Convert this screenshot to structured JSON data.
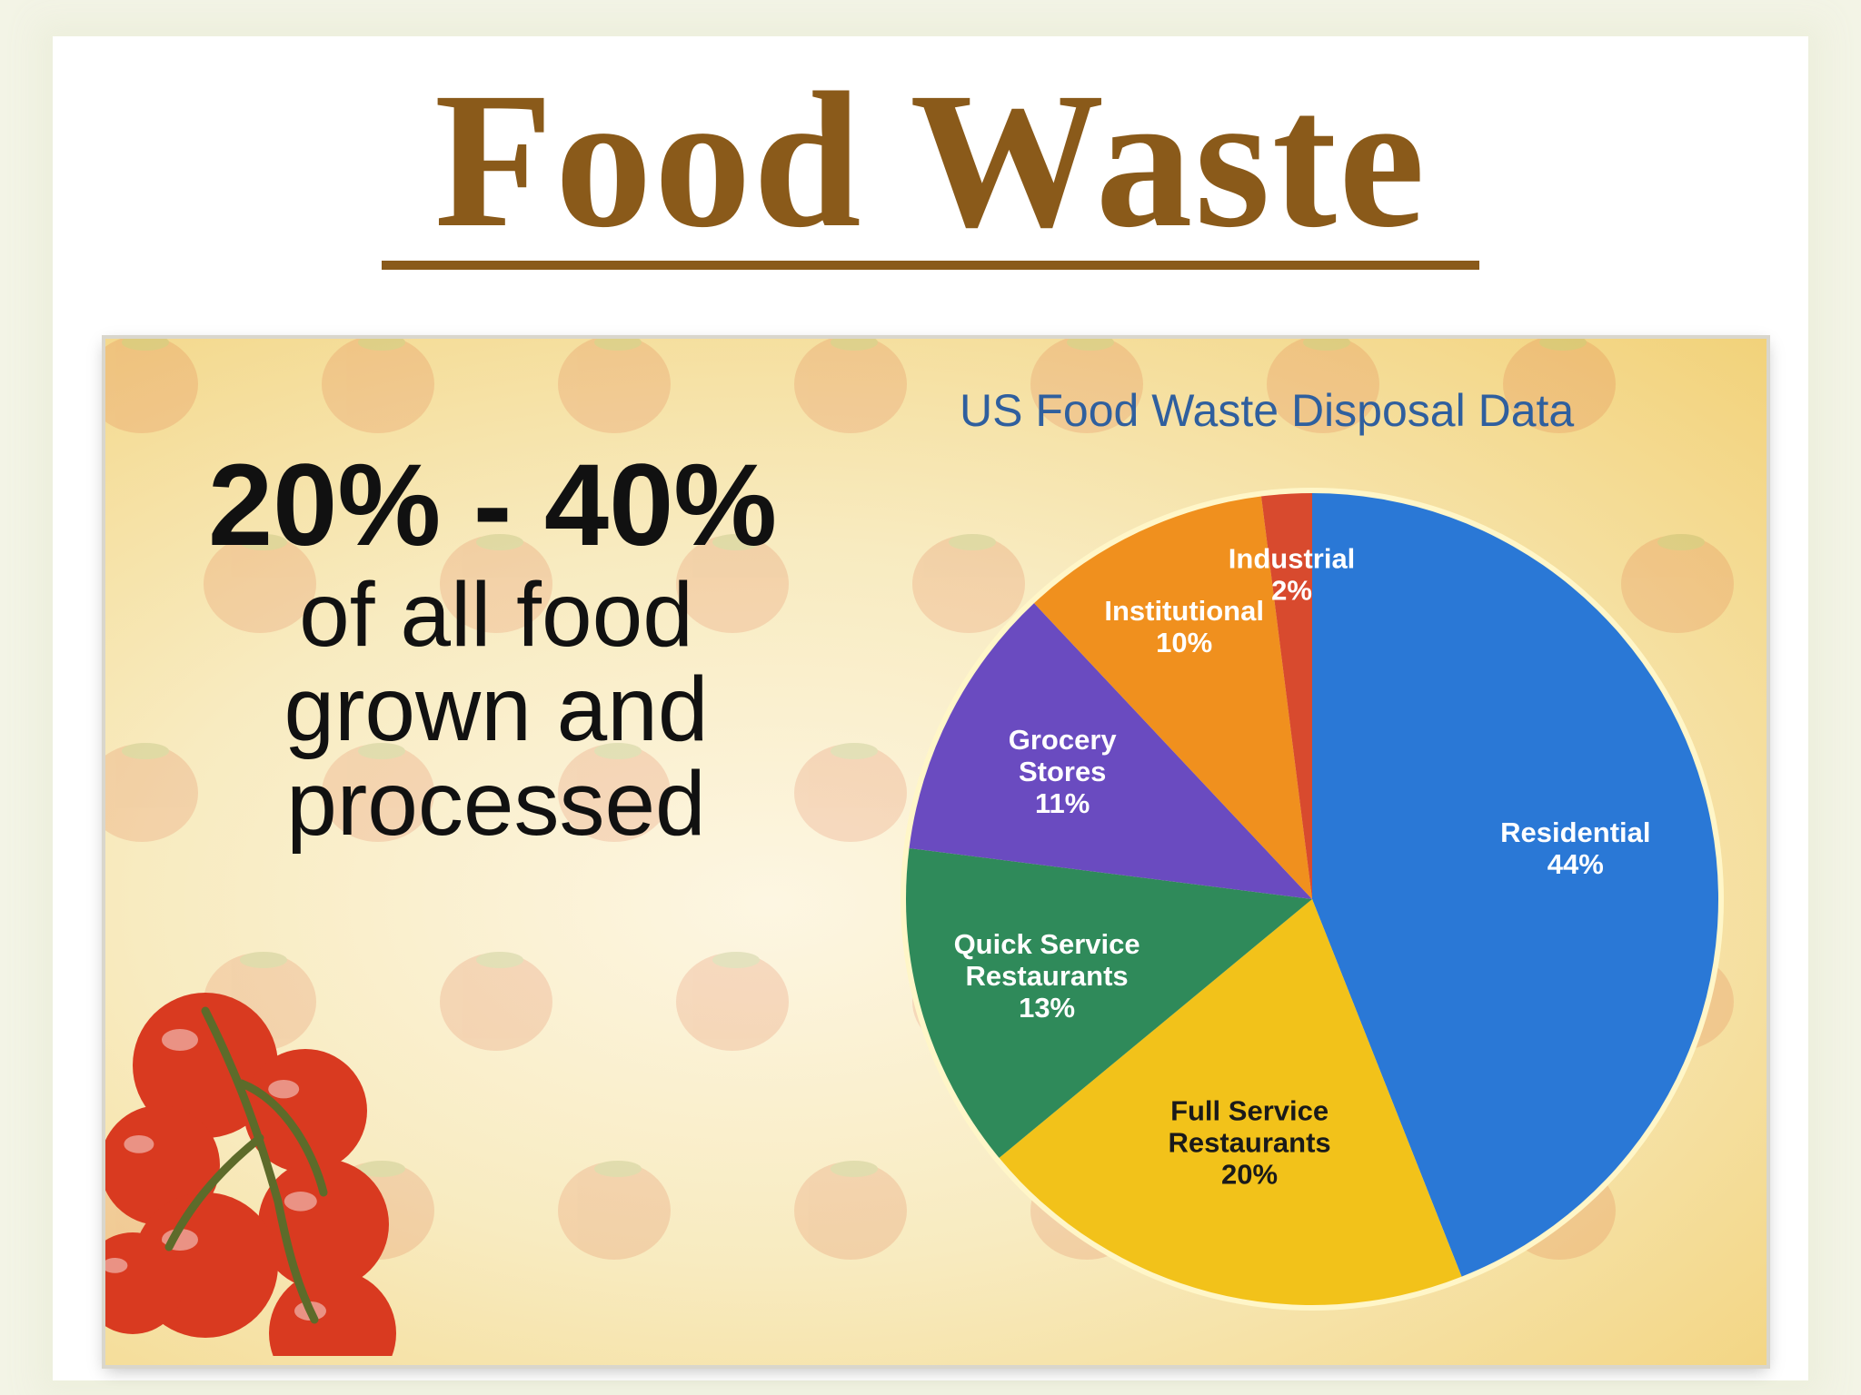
{
  "slide": {
    "title": "Food Waste"
  },
  "infographic": {
    "big_stat": "20% - 40%",
    "stat_lines": [
      "of all food",
      "grown and",
      "processed"
    ]
  },
  "chart_data": {
    "type": "pie",
    "title": "US Food Waste Disposal Data",
    "slices": [
      {
        "label": "Residential",
        "value": 44,
        "display": "44%",
        "color": "#2a78d6",
        "label_color": "#ffffff"
      },
      {
        "label": "Full Service Restaurants",
        "value": 20,
        "display": "20%",
        "color": "#f2c21a",
        "label_color": "#1a1a1a"
      },
      {
        "label": "Quick Service Restaurants",
        "value": 13,
        "display": "13%",
        "color": "#2f8a5a",
        "label_color": "#ffffff"
      },
      {
        "label": "Grocery Stores",
        "value": 11,
        "display": "11%",
        "color": "#6a4bc0",
        "label_color": "#ffffff"
      },
      {
        "label": "Institutional",
        "value": 10,
        "display": "10%",
        "color": "#f0901e",
        "label_color": "#ffffff"
      },
      {
        "label": "Industrial",
        "value": 2,
        "display": "2%",
        "color": "#d84a2e",
        "label_color": "#ffffff"
      }
    ]
  },
  "colors": {
    "title": "#8a5a1a",
    "chart_title": "#2f5f9e",
    "tomato": "#d93a20"
  }
}
